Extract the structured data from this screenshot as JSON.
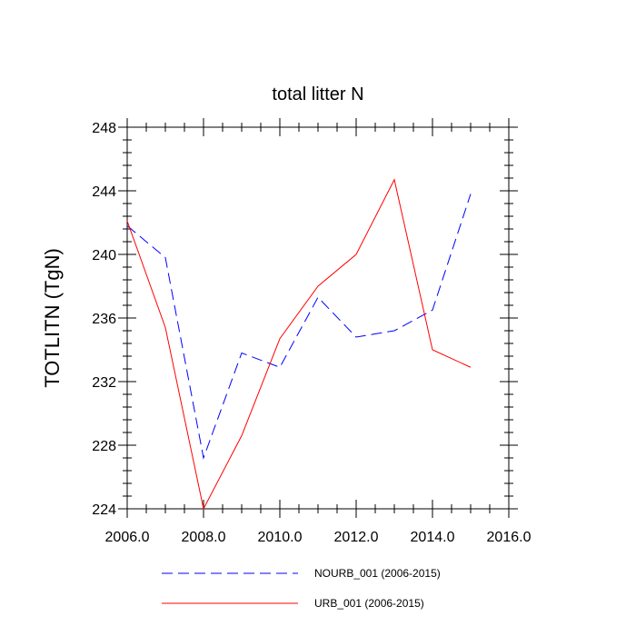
{
  "chart_data": {
    "type": "line",
    "title": "total litter N",
    "xlabel": "",
    "ylabel": "TOTLITN  (TgN)",
    "xlim": [
      2006,
      2016
    ],
    "ylim": [
      224,
      248
    ],
    "x_ticks": [
      2006,
      2008,
      2010,
      2012,
      2014,
      2016
    ],
    "x_tick_labels": [
      "2006.0",
      "2008.0",
      "2010.0",
      "2012.0",
      "2014.0",
      "2016.0"
    ],
    "y_ticks": [
      224,
      228,
      232,
      236,
      240,
      244,
      248
    ],
    "y_tick_labels": [
      "224",
      "228",
      "232",
      "236",
      "240",
      "244",
      "248"
    ],
    "grid": false,
    "legend_position": "bottom",
    "x": [
      2006,
      2007,
      2008,
      2009,
      2010,
      2011,
      2012,
      2013,
      2014,
      2015
    ],
    "series": [
      {
        "name": "NOURB_001 (2006-2015)",
        "color": "#0000ff",
        "dash": "dashed",
        "values": [
          241.8,
          239.8,
          227.2,
          233.8,
          232.9,
          237.3,
          234.8,
          235.2,
          236.5,
          243.8
        ]
      },
      {
        "name": "URB_001 (2006-2015)",
        "color": "#ff0000",
        "dash": "solid",
        "values": [
          242.1,
          235.4,
          224.0,
          228.6,
          234.7,
          238.0,
          240.0,
          244.7,
          234.0,
          232.9
        ]
      }
    ]
  }
}
